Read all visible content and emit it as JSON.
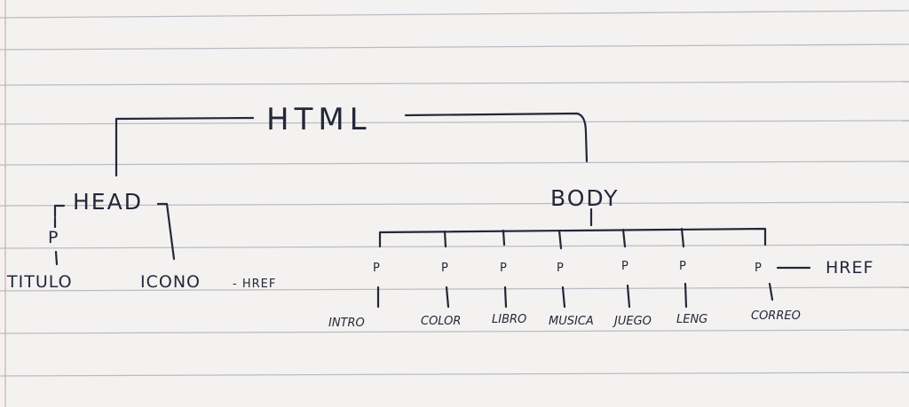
{
  "diagram": {
    "root": "HTML",
    "head": {
      "label": "HEAD",
      "p_label": "P",
      "children": [
        "TITULO",
        "ICONO"
      ],
      "icono_attr": "- HREF"
    },
    "body": {
      "label": "BODY",
      "p_label": "P",
      "children": [
        "INTRO",
        "COLOR",
        "LIBRO",
        "MUSICA",
        "JUEGO",
        "LENG",
        "CORREO"
      ],
      "correo_attr": "HREF"
    }
  },
  "colors": {
    "ink": "#23273a",
    "paper": "#f4f2f0",
    "rule": "#b9bcc4"
  }
}
